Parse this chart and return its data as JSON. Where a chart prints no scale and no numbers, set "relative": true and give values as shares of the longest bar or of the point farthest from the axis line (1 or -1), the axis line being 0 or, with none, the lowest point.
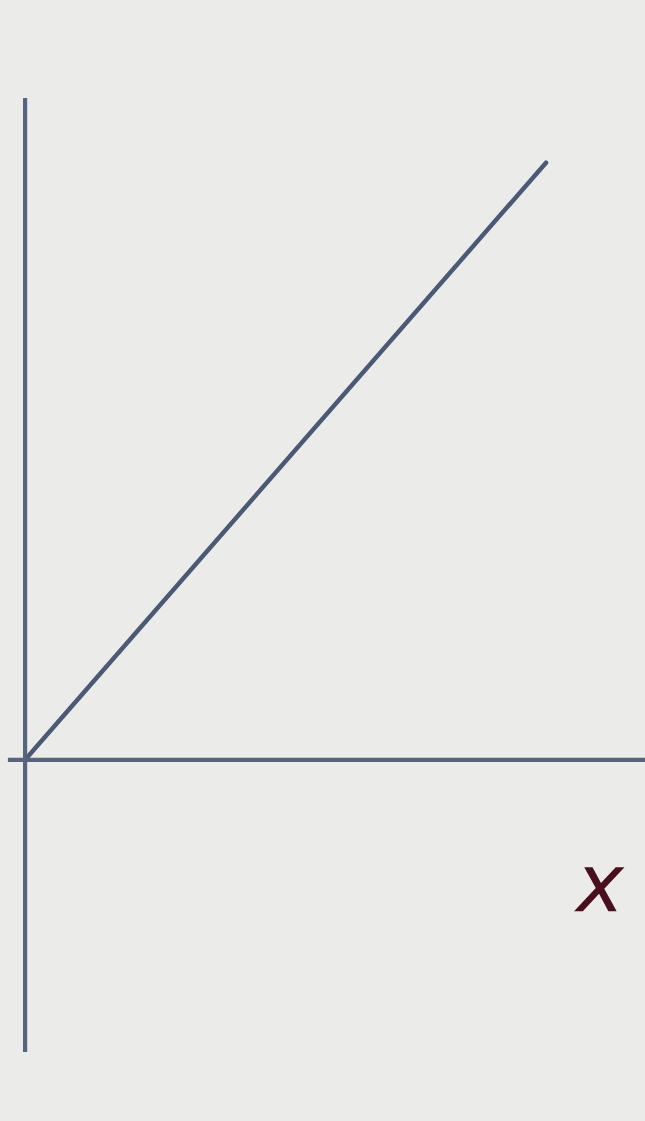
{
  "chart_data": {
    "type": "line",
    "relative": true,
    "xlabel": "x",
    "categories": [
      null,
      null
    ],
    "series": [
      {
        "color": "#4b5a74",
        "values": [
          0,
          1
        ]
      }
    ],
    "legend": false,
    "marker": "none",
    "line_style": "solid"
  }
}
